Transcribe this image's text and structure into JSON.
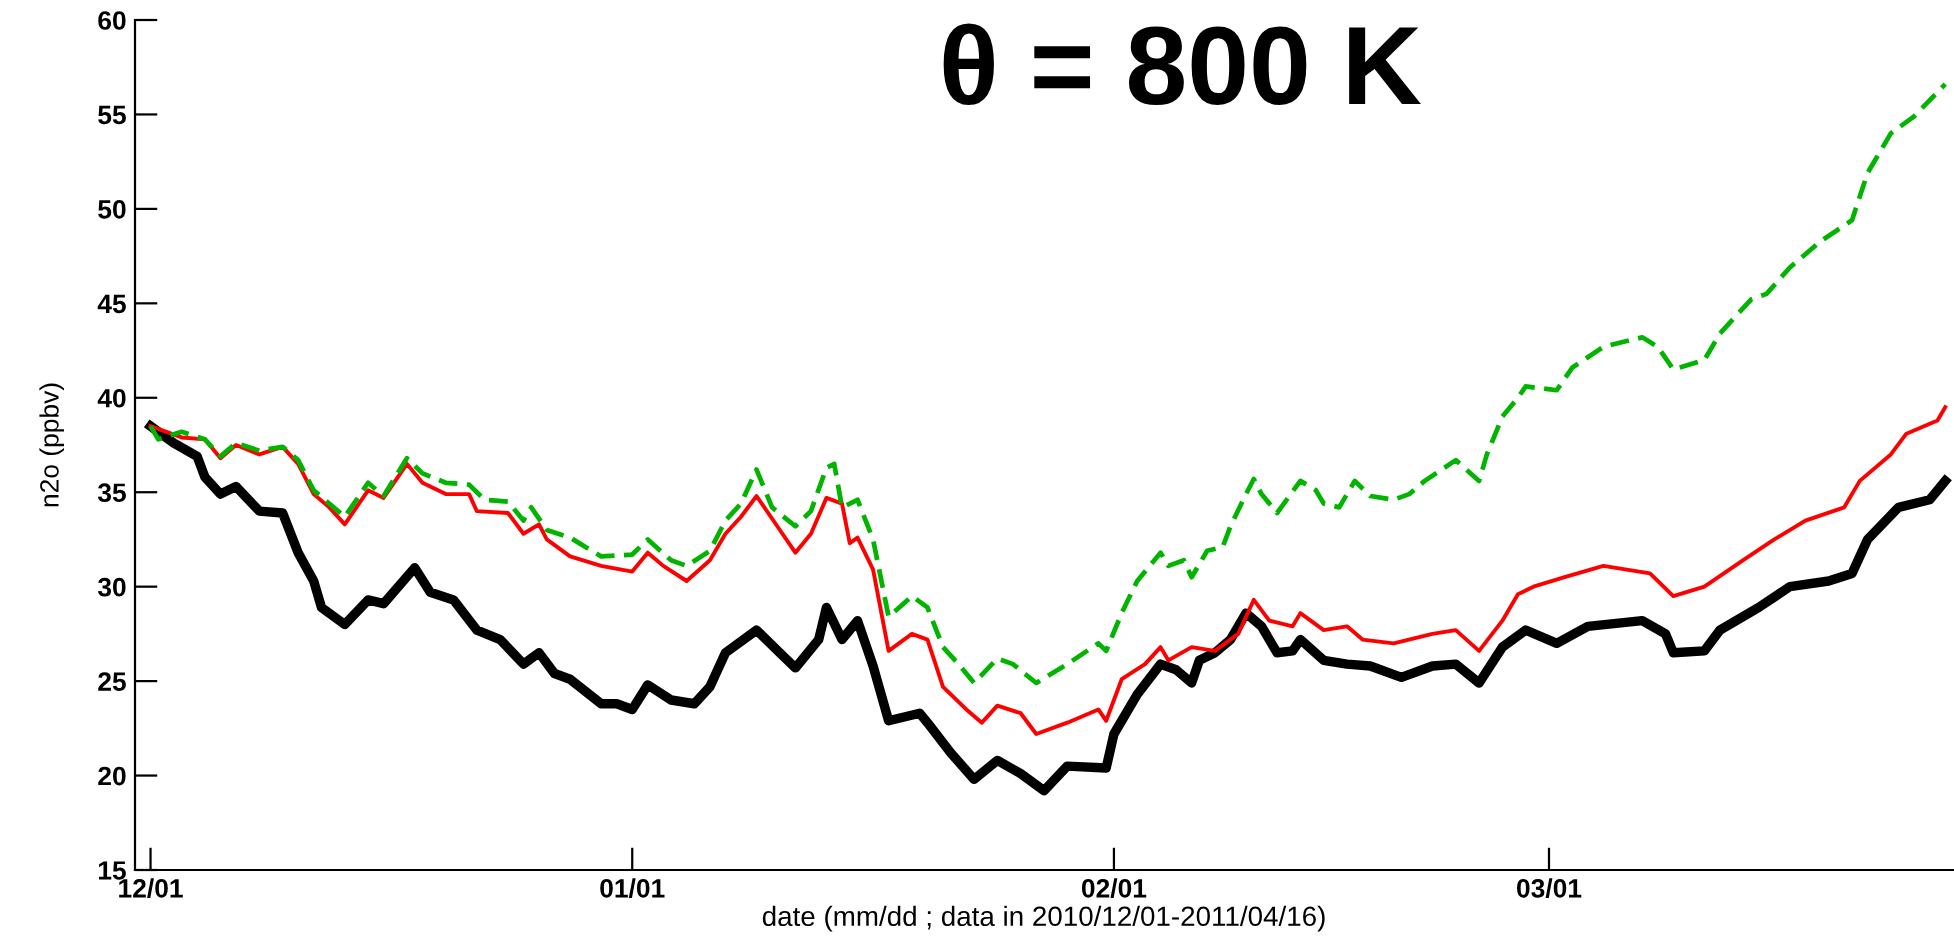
{
  "chart_data": {
    "type": "line",
    "title": "θ = 800 K",
    "xlabel": "date (mm/dd ; data in 2010/12/01-2011/04/16)",
    "ylabel": "n2o (ppbv)",
    "xlim": [
      "2010-11-30",
      "2011-03-27"
    ],
    "xticks": [
      {
        "value": "2010-12-01",
        "label": "12/01"
      },
      {
        "value": "2011-01-01",
        "label": "01/01"
      },
      {
        "value": "2011-02-01",
        "label": "02/01"
      },
      {
        "value": "2011-03-01",
        "label": "03/01"
      }
    ],
    "ylim": [
      15,
      60
    ],
    "yticks": [
      15,
      20,
      25,
      30,
      35,
      40,
      45,
      50,
      55,
      60
    ],
    "series": [
      {
        "color": "#000000",
        "line_style": "solid",
        "x": [
          "2010-12-01",
          "2010-12-02T12:00",
          "2010-12-04",
          "2010-12-04T12:00",
          "2010-12-05T12:00",
          "2010-12-06T12:00",
          "2010-12-08",
          "2010-12-09T12:00",
          "2010-12-10T12:00",
          "2010-12-11T12:00",
          "2010-12-12",
          "2010-12-13T12:00",
          "2010-12-15",
          "2010-12-16",
          "2010-12-18",
          "2010-12-19",
          "2010-12-20T12:00",
          "2010-12-22",
          "2010-12-23T12:00",
          "2010-12-25",
          "2010-12-26",
          "2010-12-27",
          "2010-12-28",
          "2010-12-30",
          "2010-12-31",
          "2011-01-01",
          "2011-01-02",
          "2011-01-03T12:00",
          "2011-01-05",
          "2011-01-06",
          "2011-01-07",
          "2011-01-09",
          "2011-01-10T12:00",
          "2011-01-11T12:00",
          "2011-01-13",
          "2011-01-13T12:00",
          "2011-01-14T12:00",
          "2011-01-15T12:00",
          "2011-01-16T12:00",
          "2011-01-17T12:00",
          "2011-01-19T12:00",
          "2011-01-20",
          "2011-01-21T12:00",
          "2011-01-23",
          "2011-01-24T12:00",
          "2011-01-26",
          "2011-01-27T12:00",
          "2011-01-29",
          "2011-01-31T12:00",
          "2011-02-01",
          "2011-02-02T12:00",
          "2011-02-04",
          "2011-02-05",
          "2011-02-06",
          "2011-02-06T12:00",
          "2011-02-07T12:00",
          "2011-02-08T12:00",
          "2011-02-09T12:00",
          "2011-02-10T12:00",
          "2011-02-11T12:00",
          "2011-02-12T12:00",
          "2011-02-13",
          "2011-02-14T12:00",
          "2011-02-16",
          "2011-02-17T12:00",
          "2011-02-19T12:00",
          "2011-02-21T12:00",
          "2011-02-23",
          "2011-02-24T12:00",
          "2011-02-26",
          "2011-02-27T12:00",
          "2011-03-01T12:00",
          "2011-03-03T12:00",
          "2011-03-07",
          "2011-03-08T12:00",
          "2011-03-09",
          "2011-03-11",
          "2011-03-12",
          "2011-03-14T12:00",
          "2011-03-16T12:00",
          "2011-03-19",
          "2011-03-20T12:00",
          "2011-03-21T12:00",
          "2011-03-23T12:00",
          "2011-03-25T12:00",
          "2011-03-26T12:00"
        ],
        "values": [
          38.5,
          37.6,
          36.9,
          35.8,
          34.9,
          35.3,
          34.0,
          33.9,
          31.8,
          30.3,
          28.9,
          28.0,
          29.3,
          29.1,
          31.0,
          29.7,
          29.3,
          27.7,
          27.2,
          25.9,
          26.5,
          25.4,
          25.1,
          23.8,
          23.8,
          23.5,
          24.8,
          24.0,
          23.8,
          24.7,
          26.5,
          27.7,
          26.5,
          25.7,
          27.2,
          28.9,
          27.2,
          28.2,
          25.8,
          22.9,
          23.3,
          22.8,
          21.2,
          19.8,
          20.8,
          20.1,
          19.2,
          20.5,
          20.4,
          22.2,
          24.3,
          25.9,
          25.6,
          24.9,
          26.1,
          26.5,
          27.2,
          28.6,
          27.9,
          26.5,
          26.6,
          27.2,
          26.1,
          25.9,
          25.8,
          25.2,
          25.8,
          25.9,
          24.9,
          26.8,
          27.7,
          27.0,
          27.9,
          28.2,
          27.5,
          26.5,
          26.6,
          27.7,
          28.9,
          30.0,
          30.3,
          30.7,
          32.5,
          34.2,
          34.6,
          35.6
        ]
      },
      {
        "color": "#ff0000",
        "line_style": "solid",
        "x": [
          "2010-12-01",
          "2010-12-03",
          "2010-12-04T12:00",
          "2010-12-05T12:00",
          "2010-12-06T12:00",
          "2010-12-08",
          "2010-12-09T12:00",
          "2010-12-10T12:00",
          "2010-12-11T12:00",
          "2010-12-12T12:00",
          "2010-12-13T12:00",
          "2010-12-15",
          "2010-12-16",
          "2010-12-17T12:00",
          "2010-12-18T12:00",
          "2010-12-20",
          "2010-12-21T12:00",
          "2010-12-22",
          "2010-12-24",
          "2010-12-25",
          "2010-12-26",
          "2010-12-26T12:00",
          "2010-12-28",
          "2010-12-30",
          "2011-01-01",
          "2011-01-02",
          "2011-01-03",
          "2011-01-04T12:00",
          "2011-01-06",
          "2011-01-07",
          "2011-01-08",
          "2011-01-09",
          "2011-01-10T12:00",
          "2011-01-11T12:00",
          "2011-01-12T12:00",
          "2011-01-13T12:00",
          "2011-01-14T12:00",
          "2011-01-15",
          "2011-01-15T12:00",
          "2011-01-16T12:00",
          "2011-01-17T12:00",
          "2011-01-19",
          "2011-01-20",
          "2011-01-21",
          "2011-01-22T12:00",
          "2011-01-23T12:00",
          "2011-01-24T12:00",
          "2011-01-26",
          "2011-01-27",
          "2011-01-29",
          "2011-01-31",
          "2011-01-31T12:00",
          "2011-02-01T12:00",
          "2011-02-03",
          "2011-02-04",
          "2011-02-04T12:00",
          "2011-02-06",
          "2011-02-07T12:00",
          "2011-02-09",
          "2011-02-10",
          "2011-02-11",
          "2011-02-12T12:00",
          "2011-02-13",
          "2011-02-14T12:00",
          "2011-02-16",
          "2011-02-17",
          "2011-02-19",
          "2011-02-21T12:00",
          "2011-02-23",
          "2011-02-24T12:00",
          "2011-02-26",
          "2011-02-27",
          "2011-02-28",
          "2011-03-02",
          "2011-03-04T12:00",
          "2011-03-07T12:00",
          "2011-03-09",
          "2011-03-11",
          "2011-03-13T12:00",
          "2011-03-15T12:00",
          "2011-03-17T12:00",
          "2011-03-20",
          "2011-03-21",
          "2011-03-23",
          "2011-03-24",
          "2011-03-26",
          "2011-03-26T12:00"
        ],
        "values": [
          38.5,
          37.9,
          37.8,
          36.8,
          37.5,
          37.0,
          37.4,
          36.5,
          34.9,
          34.2,
          33.3,
          35.1,
          34.7,
          36.5,
          35.5,
          34.9,
          34.9,
          34.0,
          33.9,
          32.8,
          33.3,
          32.5,
          31.6,
          31.1,
          30.8,
          31.8,
          31.1,
          30.3,
          31.4,
          32.8,
          33.7,
          34.8,
          33.0,
          31.8,
          32.8,
          34.7,
          34.4,
          32.3,
          32.6,
          30.9,
          26.6,
          27.5,
          27.2,
          24.7,
          23.5,
          22.8,
          23.7,
          23.3,
          22.2,
          22.8,
          23.5,
          22.9,
          25.1,
          25.9,
          26.8,
          26.1,
          26.8,
          26.6,
          27.5,
          29.3,
          28.2,
          27.9,
          28.6,
          27.7,
          27.9,
          27.2,
          27.0,
          27.5,
          27.7,
          26.6,
          28.2,
          29.6,
          30.0,
          30.5,
          31.1,
          30.7,
          29.5,
          30.0,
          31.4,
          32.5,
          33.5,
          34.2,
          35.6,
          37.0,
          38.1,
          38.8,
          39.5
        ]
      },
      {
        "color": "#00b400",
        "line_style": "dashed",
        "x": [
          "2010-12-01",
          "2010-12-01T12:00",
          "2010-12-03",
          "2010-12-04T12:00",
          "2010-12-05T12:00",
          "2010-12-06T12:00",
          "2010-12-08",
          "2010-12-09T12:00",
          "2010-12-10T12:00",
          "2010-12-11T12:00",
          "2010-12-12T12:00",
          "2010-12-13T12:00",
          "2010-12-15",
          "2010-12-16",
          "2010-12-17T12:00",
          "2010-12-18T12:00",
          "2010-12-20",
          "2010-12-21T12:00",
          "2010-12-22T12:00",
          "2010-12-24",
          "2010-12-25",
          "2010-12-25T12:00",
          "2010-12-26T12:00",
          "2010-12-28",
          "2010-12-30",
          "2011-01-01",
          "2011-01-02",
          "2011-01-03T12:00",
          "2011-01-04T12:00",
          "2011-01-06",
          "2011-01-07",
          "2011-01-08",
          "2011-01-09",
          "2011-01-10",
          "2011-01-11T12:00",
          "2011-01-12T12:00",
          "2011-01-13T12:00",
          "2011-01-14",
          "2011-01-14T12:00",
          "2011-01-15T12:00",
          "2011-01-16T12:00",
          "2011-01-17T12:00",
          "2011-01-19",
          "2011-01-20",
          "2011-01-21",
          "2011-01-22",
          "2011-01-23",
          "2011-01-24T12:00",
          "2011-01-25T12:00",
          "2011-01-27",
          "2011-01-29",
          "2011-01-31",
          "2011-01-31T12:00",
          "2011-02-01T12:00",
          "2011-02-02T12:00",
          "2011-02-04",
          "2011-02-04T12:00",
          "2011-02-05T12:00",
          "2011-02-06",
          "2011-02-07",
          "2011-02-08",
          "2011-02-08T12:00",
          "2011-02-09T12:00",
          "2011-02-10",
          "2011-02-10T12:00",
          "2011-02-11T12:00",
          "2011-02-13",
          "2011-02-14",
          "2011-02-14T12:00",
          "2011-02-15T12:00",
          "2011-02-16T12:00",
          "2011-02-17T12:00",
          "2011-02-19",
          "2011-02-20",
          "2011-02-21",
          "2011-02-23",
          "2011-02-24T12:00",
          "2011-02-25",
          "2011-02-26",
          "2011-02-27",
          "2011-02-27T12:00",
          "2011-03-01T12:00",
          "2011-03-02T12:00",
          "2011-03-04T12:00",
          "2011-03-07",
          "2011-03-08",
          "2011-03-09",
          "2011-03-11",
          "2011-03-12",
          "2011-03-14",
          "2011-03-15",
          "2011-03-16T12:00",
          "2011-03-18T12:00",
          "2011-03-20T12:00",
          "2011-03-21T12:00",
          "2011-03-23",
          "2011-03-24T12:00",
          "2011-03-26T12:00"
        ],
        "values": [
          38.5,
          37.8,
          38.2,
          37.8,
          36.9,
          37.6,
          37.2,
          37.4,
          36.7,
          35.1,
          34.4,
          33.7,
          35.5,
          34.8,
          36.8,
          36.0,
          35.5,
          35.4,
          34.6,
          34.5,
          33.5,
          34.2,
          33.0,
          32.6,
          31.6,
          31.7,
          32.5,
          31.4,
          31.1,
          31.9,
          33.5,
          34.4,
          36.2,
          34.2,
          33.2,
          34.0,
          36.3,
          36.5,
          34.2,
          34.6,
          32.5,
          28.4,
          29.5,
          28.9,
          26.8,
          25.9,
          24.9,
          26.2,
          25.9,
          24.9,
          25.9,
          27.0,
          26.6,
          28.6,
          30.3,
          31.8,
          31.1,
          31.4,
          30.5,
          31.9,
          32.1,
          33.2,
          34.9,
          35.7,
          34.9,
          33.9,
          35.6,
          35.1,
          34.4,
          34.2,
          35.6,
          34.8,
          34.6,
          34.9,
          35.6,
          36.7,
          35.6,
          37.0,
          39.0,
          40.0,
          40.6,
          40.4,
          41.6,
          42.7,
          43.2,
          42.7,
          41.5,
          42.0,
          43.4,
          45.2,
          45.5,
          46.9,
          48.3,
          49.4,
          51.9,
          54.0,
          54.9,
          56.6
        ]
      }
    ]
  }
}
